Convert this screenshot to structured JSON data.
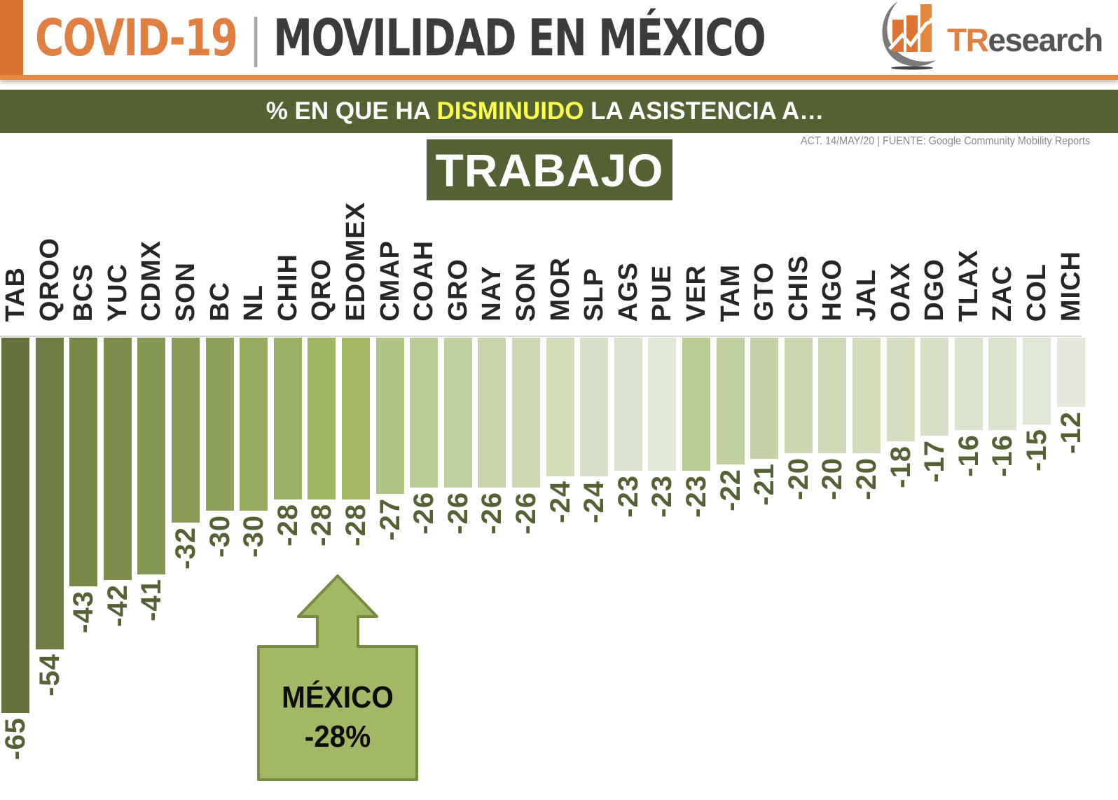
{
  "header": {
    "title_part1": "COVID-19",
    "separator": "|",
    "title_part2": "MOVILIDAD EN MÉXICO",
    "logo": {
      "icon": "bar-chart-growth-icon",
      "text_t": "T",
      "text_r": "R",
      "text_rest": "esearch"
    }
  },
  "subtitle": {
    "prefix": "% EN QUE HA ",
    "highlight": "DISMINUIDO",
    "suffix": " LA ASISTENCIA A…"
  },
  "source": "ACT. 14/MAY/20 | FUENTE: Google Community Mobility Reports",
  "category": "TRABAJO",
  "callout": {
    "icon": "arrow-up-icon",
    "line1": "MÉXICO",
    "line2": "-28%"
  },
  "colors": {
    "orange": "#e07f42",
    "dark_green": "#546132",
    "highlight_yellow": "#fdfd4b",
    "callout_fill": "#a3b865",
    "callout_border": "#768a42"
  },
  "chart_data": {
    "type": "bar",
    "title": "% EN QUE HA DISMINUIDO LA ASISTENCIA A… TRABAJO",
    "xlabel": "",
    "ylabel": "",
    "ylim": [
      -65,
      0
    ],
    "grid": false,
    "legend": null,
    "orientation": "vertical, negative values hanging from top axis",
    "categories": [
      "TAB",
      "QROO",
      "BCS",
      "YUC",
      "CDMX",
      "SON",
      "BC",
      "NL",
      "CHIH",
      "QRO",
      "EDOMEX",
      "CMAP",
      "COAH",
      "GRO",
      "NAY",
      "SON",
      "MOR",
      "SLP",
      "AGS",
      "PUE",
      "VER",
      "TAM",
      "GTO",
      "CHIS",
      "HGO",
      "JAL",
      "OAX",
      "DGO",
      "TLAX",
      "ZAC",
      "COL",
      "MICH"
    ],
    "values": [
      -65,
      -54,
      -43,
      -42,
      -41,
      -32,
      -30,
      -30,
      -28,
      -28,
      -28,
      -27,
      -26,
      -26,
      -26,
      -26,
      -24,
      -24,
      -23,
      -23,
      -23,
      -22,
      -21,
      -20,
      -20,
      -20,
      -18,
      -17,
      -16,
      -16,
      -15,
      -12
    ],
    "bar_colors": [
      "#67733d",
      "#6f7d42",
      "#788847",
      "#7d8c4b",
      "#849753",
      "#8a9b57",
      "#8fa25c",
      "#97ab60",
      "#9bb064",
      "#a0b565",
      "#a3b766",
      "#b0c385",
      "#b9ca97",
      "#bfcf9f",
      "#c6d3ab",
      "#ccd8b4",
      "#d2dcba",
      "#d8e1c7",
      "#dce4cf",
      "#e1e8d6",
      "#b9ca94",
      "#bfcf9f",
      "#c4d1a7",
      "#cad7b0",
      "#cfdab6",
      "#d3ddbc",
      "#d5dfc0",
      "#d8e1c6",
      "#dce4cc",
      "#dce4cc",
      "#e0e7d5",
      "#e4e9db"
    ],
    "annotations": [
      {
        "text": "MÉXICO -28%",
        "points_to": "EDOMEX/QRO area"
      }
    ]
  }
}
